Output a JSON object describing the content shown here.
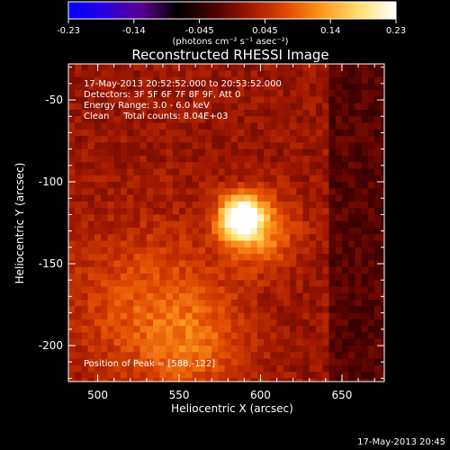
{
  "chart_data": {
    "type": "heatmap",
    "title": "Reconstructed RHESSI Image",
    "xlabel": "Heliocentric X (arcsec)",
    "ylabel": "Heliocentric Y (arcsec)",
    "xlim": [
      482,
      676
    ],
    "ylim": [
      -222,
      -28
    ],
    "xticks": [
      500,
      550,
      600,
      650
    ],
    "yticks": [
      -50,
      -100,
      -150,
      -200
    ],
    "colorbar": {
      "min": -0.23,
      "max": 0.23,
      "ticks": [
        "-0.23",
        "-0.14",
        "-0.045",
        "0.045",
        "0.14",
        "0.23"
      ],
      "unit_label": "(photons cm⁻² s⁻¹ asec⁻²)",
      "colormap": [
        "#0000ff",
        "#2a00e0",
        "#5a0090",
        "#000000",
        "#4a0000",
        "#a01800",
        "#e04a00",
        "#ff9a20",
        "#ffe070",
        "#ffffff"
      ]
    },
    "annotations": [
      "17-May-2013 20:52:52.000 to 20:53:52.000",
      "Detectors: 3F 5F 6F 7F 8F 9F, Att 0",
      "Energy Range: 3.0 - 6.0 keV",
      "Clean     Total counts: 8.04E+03"
    ],
    "peak_label": "Position of Peak = [588,-122]",
    "peak": {
      "x": 588,
      "y": -122,
      "value": 0.23
    },
    "sources": [
      {
        "x": 588,
        "y": -122,
        "value": 0.23,
        "sigma": 9
      },
      {
        "x": 600,
        "y": -130,
        "value": 0.09,
        "sigma": 16
      },
      {
        "x": 530,
        "y": -175,
        "value": 0.06,
        "sigma": 35
      },
      {
        "x": 560,
        "y": -200,
        "value": 0.05,
        "sigma": 22
      }
    ],
    "background": {
      "value": 0.02
    },
    "timestamp": "17-May-2013 20:45"
  }
}
